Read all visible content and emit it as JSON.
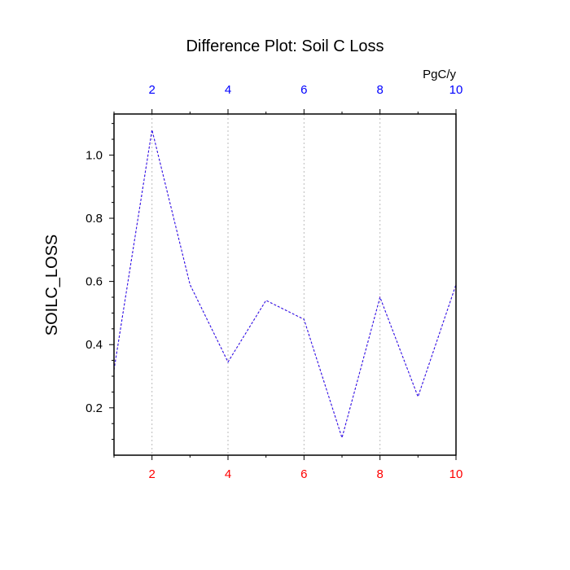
{
  "chart_data": {
    "type": "line",
    "title": "Difference Plot: Soil C Loss",
    "ylabel": "SOILC_LOSS",
    "top_axis_units": "PgC/y",
    "xlim": [
      1,
      10
    ],
    "ylim": [
      0.05,
      1.13
    ],
    "x": [
      1,
      2,
      3,
      4,
      5,
      6,
      7,
      8,
      9,
      10
    ],
    "series": [
      {
        "values": [
          0.32,
          1.08,
          0.59,
          0.345,
          0.54,
          0.48,
          0.105,
          0.55,
          0.235,
          0.59
        ],
        "color": "#6a0dad",
        "dashed": true
      },
      {
        "values": [
          0.32,
          1.08,
          0.59,
          0.345,
          0.54,
          0.48,
          0.105,
          0.55,
          0.235,
          0.59
        ],
        "color": "#1a1aff",
        "dashed": true
      }
    ],
    "x_ticks": [
      2,
      4,
      6,
      8,
      10
    ],
    "x_tick_labels": [
      "2",
      "4",
      "6",
      "8",
      "10"
    ],
    "y_ticks": [
      0.2,
      0.4,
      0.6,
      0.8,
      1.0
    ],
    "y_tick_labels": [
      "0.2",
      "0.4",
      "0.6",
      "0.8",
      "1.0"
    ],
    "bottom_tick_color": "#ff0000",
    "top_tick_color": "#0000ff",
    "grid": "vertical-dotted"
  }
}
